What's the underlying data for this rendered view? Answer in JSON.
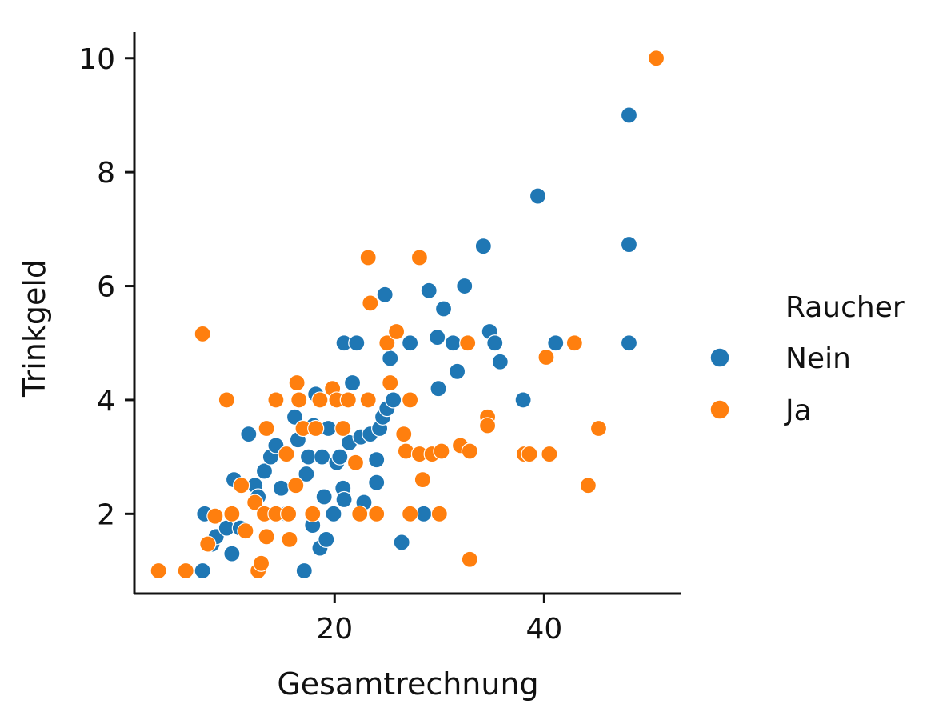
{
  "chart_data": {
    "type": "scatter",
    "title": "",
    "xlabel": "Gesamtrechnung",
    "ylabel": "Trinkgeld",
    "xlim": [
      0.9,
      53.1
    ],
    "ylim": [
      0.6,
      10.46
    ],
    "xticks": [
      20,
      40
    ],
    "yticks": [
      2,
      4,
      6,
      8,
      10
    ],
    "grid": false,
    "legend": {
      "title": "Raucher",
      "placement": "right"
    },
    "series": [
      {
        "name": "Nein",
        "color": "#1f77b4",
        "points": [
          [
            7.4,
            1.0
          ],
          [
            7.6,
            2.0
          ],
          [
            8.3,
            1.47
          ],
          [
            8.7,
            1.6
          ],
          [
            9.7,
            1.75
          ],
          [
            10.2,
            1.3
          ],
          [
            10.4,
            2.6
          ],
          [
            11,
            1.75
          ],
          [
            11.8,
            3.4
          ],
          [
            12.4,
            2.5
          ],
          [
            12.7,
            2.3
          ],
          [
            13.3,
            2.75
          ],
          [
            13.9,
            3.0
          ],
          [
            14.4,
            3.2
          ],
          [
            14.9,
            2.45
          ],
          [
            15.4,
            2.0
          ],
          [
            16.2,
            3.7
          ],
          [
            16.5,
            3.3
          ],
          [
            17.1,
            1.0
          ],
          [
            17.3,
            2.7
          ],
          [
            17.5,
            3.0
          ],
          [
            17.9,
            1.8
          ],
          [
            18,
            3.55
          ],
          [
            18.2,
            4.1
          ],
          [
            18.6,
            1.4
          ],
          [
            18.8,
            3.0
          ],
          [
            19,
            2.3
          ],
          [
            19.2,
            1.55
          ],
          [
            19.4,
            3.5
          ],
          [
            19.9,
            2.0
          ],
          [
            20.2,
            2.9
          ],
          [
            20.5,
            3.0
          ],
          [
            20.9,
            5.0
          ],
          [
            20.8,
            2.45
          ],
          [
            20.9,
            2.25
          ],
          [
            21.4,
            3.25
          ],
          [
            21.7,
            4.3
          ],
          [
            22.1,
            5.0
          ],
          [
            22.5,
            3.35
          ],
          [
            22.8,
            2.2
          ],
          [
            23.4,
            3.4
          ],
          [
            24,
            2.95
          ],
          [
            24,
            2.55
          ],
          [
            24.3,
            3.5
          ],
          [
            24.6,
            3.7
          ],
          [
            25,
            3.85
          ],
          [
            25.3,
            4.73
          ],
          [
            24.8,
            5.85
          ],
          [
            25.6,
            4.0
          ],
          [
            26.4,
            1.5
          ],
          [
            27.2,
            5.0
          ],
          [
            28.5,
            2.0
          ],
          [
            29,
            5.92
          ],
          [
            29.8,
            5.1
          ],
          [
            29.9,
            4.2
          ],
          [
            30.4,
            5.6
          ],
          [
            31.3,
            5.0
          ],
          [
            31.7,
            4.5
          ],
          [
            32.4,
            6.0
          ],
          [
            34.2,
            6.7
          ],
          [
            34.8,
            5.2
          ],
          [
            35.3,
            5.0
          ],
          [
            35.8,
            4.67
          ],
          [
            38,
            4.0
          ],
          [
            39.4,
            7.58
          ],
          [
            41.1,
            5.0
          ],
          [
            48.1,
            9.0
          ],
          [
            48.1,
            6.73
          ],
          [
            48.1,
            5.0
          ]
        ]
      },
      {
        "name": "Ja",
        "color": "#ff7f0e",
        "points": [
          [
            3.2,
            1.0
          ],
          [
            5.8,
            1.0
          ],
          [
            7.4,
            5.16
          ],
          [
            7.9,
            1.47
          ],
          [
            8.6,
            1.96
          ],
          [
            9.7,
            4.0
          ],
          [
            10.2,
            2.0
          ],
          [
            11.1,
            2.5
          ],
          [
            11.5,
            1.7
          ],
          [
            12.4,
            2.2
          ],
          [
            12.7,
            1.0
          ],
          [
            13,
            1.13
          ],
          [
            13.3,
            2.0
          ],
          [
            13.5,
            3.5
          ],
          [
            13.5,
            1.6
          ],
          [
            14.4,
            4.0
          ],
          [
            14.4,
            2.0
          ],
          [
            15.4,
            3.05
          ],
          [
            15.6,
            2.0
          ],
          [
            15.7,
            1.55
          ],
          [
            16.3,
            2.5
          ],
          [
            16.4,
            4.3
          ],
          [
            16.6,
            4.0
          ],
          [
            17,
            3.5
          ],
          [
            17.9,
            2.0
          ],
          [
            18.2,
            3.5
          ],
          [
            18.6,
            4.0
          ],
          [
            19.8,
            4.2
          ],
          [
            20.2,
            4.0
          ],
          [
            20.8,
            3.5
          ],
          [
            21.3,
            4.0
          ],
          [
            22,
            2.9
          ],
          [
            22.4,
            2.0
          ],
          [
            23.2,
            4.0
          ],
          [
            23.2,
            6.5
          ],
          [
            23.4,
            5.7
          ],
          [
            24,
            2.0
          ],
          [
            25,
            5.0
          ],
          [
            25.3,
            4.3
          ],
          [
            25.9,
            5.2
          ],
          [
            26.6,
            3.4
          ],
          [
            26.8,
            3.1
          ],
          [
            27.2,
            2.0
          ],
          [
            27.2,
            4.0
          ],
          [
            28.1,
            6.5
          ],
          [
            28.1,
            3.05
          ],
          [
            28.4,
            2.6
          ],
          [
            29.3,
            3.05
          ],
          [
            30,
            2.0
          ],
          [
            30.2,
            3.1
          ],
          [
            32,
            3.2
          ],
          [
            32.7,
            5.0
          ],
          [
            32.9,
            3.1
          ],
          [
            32.9,
            1.2
          ],
          [
            34.6,
            3.7
          ],
          [
            34.6,
            3.55
          ],
          [
            38.1,
            3.05
          ],
          [
            38.6,
            3.05
          ],
          [
            40.2,
            4.75
          ],
          [
            40.5,
            3.05
          ],
          [
            42.9,
            5.0
          ],
          [
            44.2,
            2.5
          ],
          [
            45.2,
            3.5
          ],
          [
            50.7,
            10.0
          ]
        ]
      }
    ]
  }
}
